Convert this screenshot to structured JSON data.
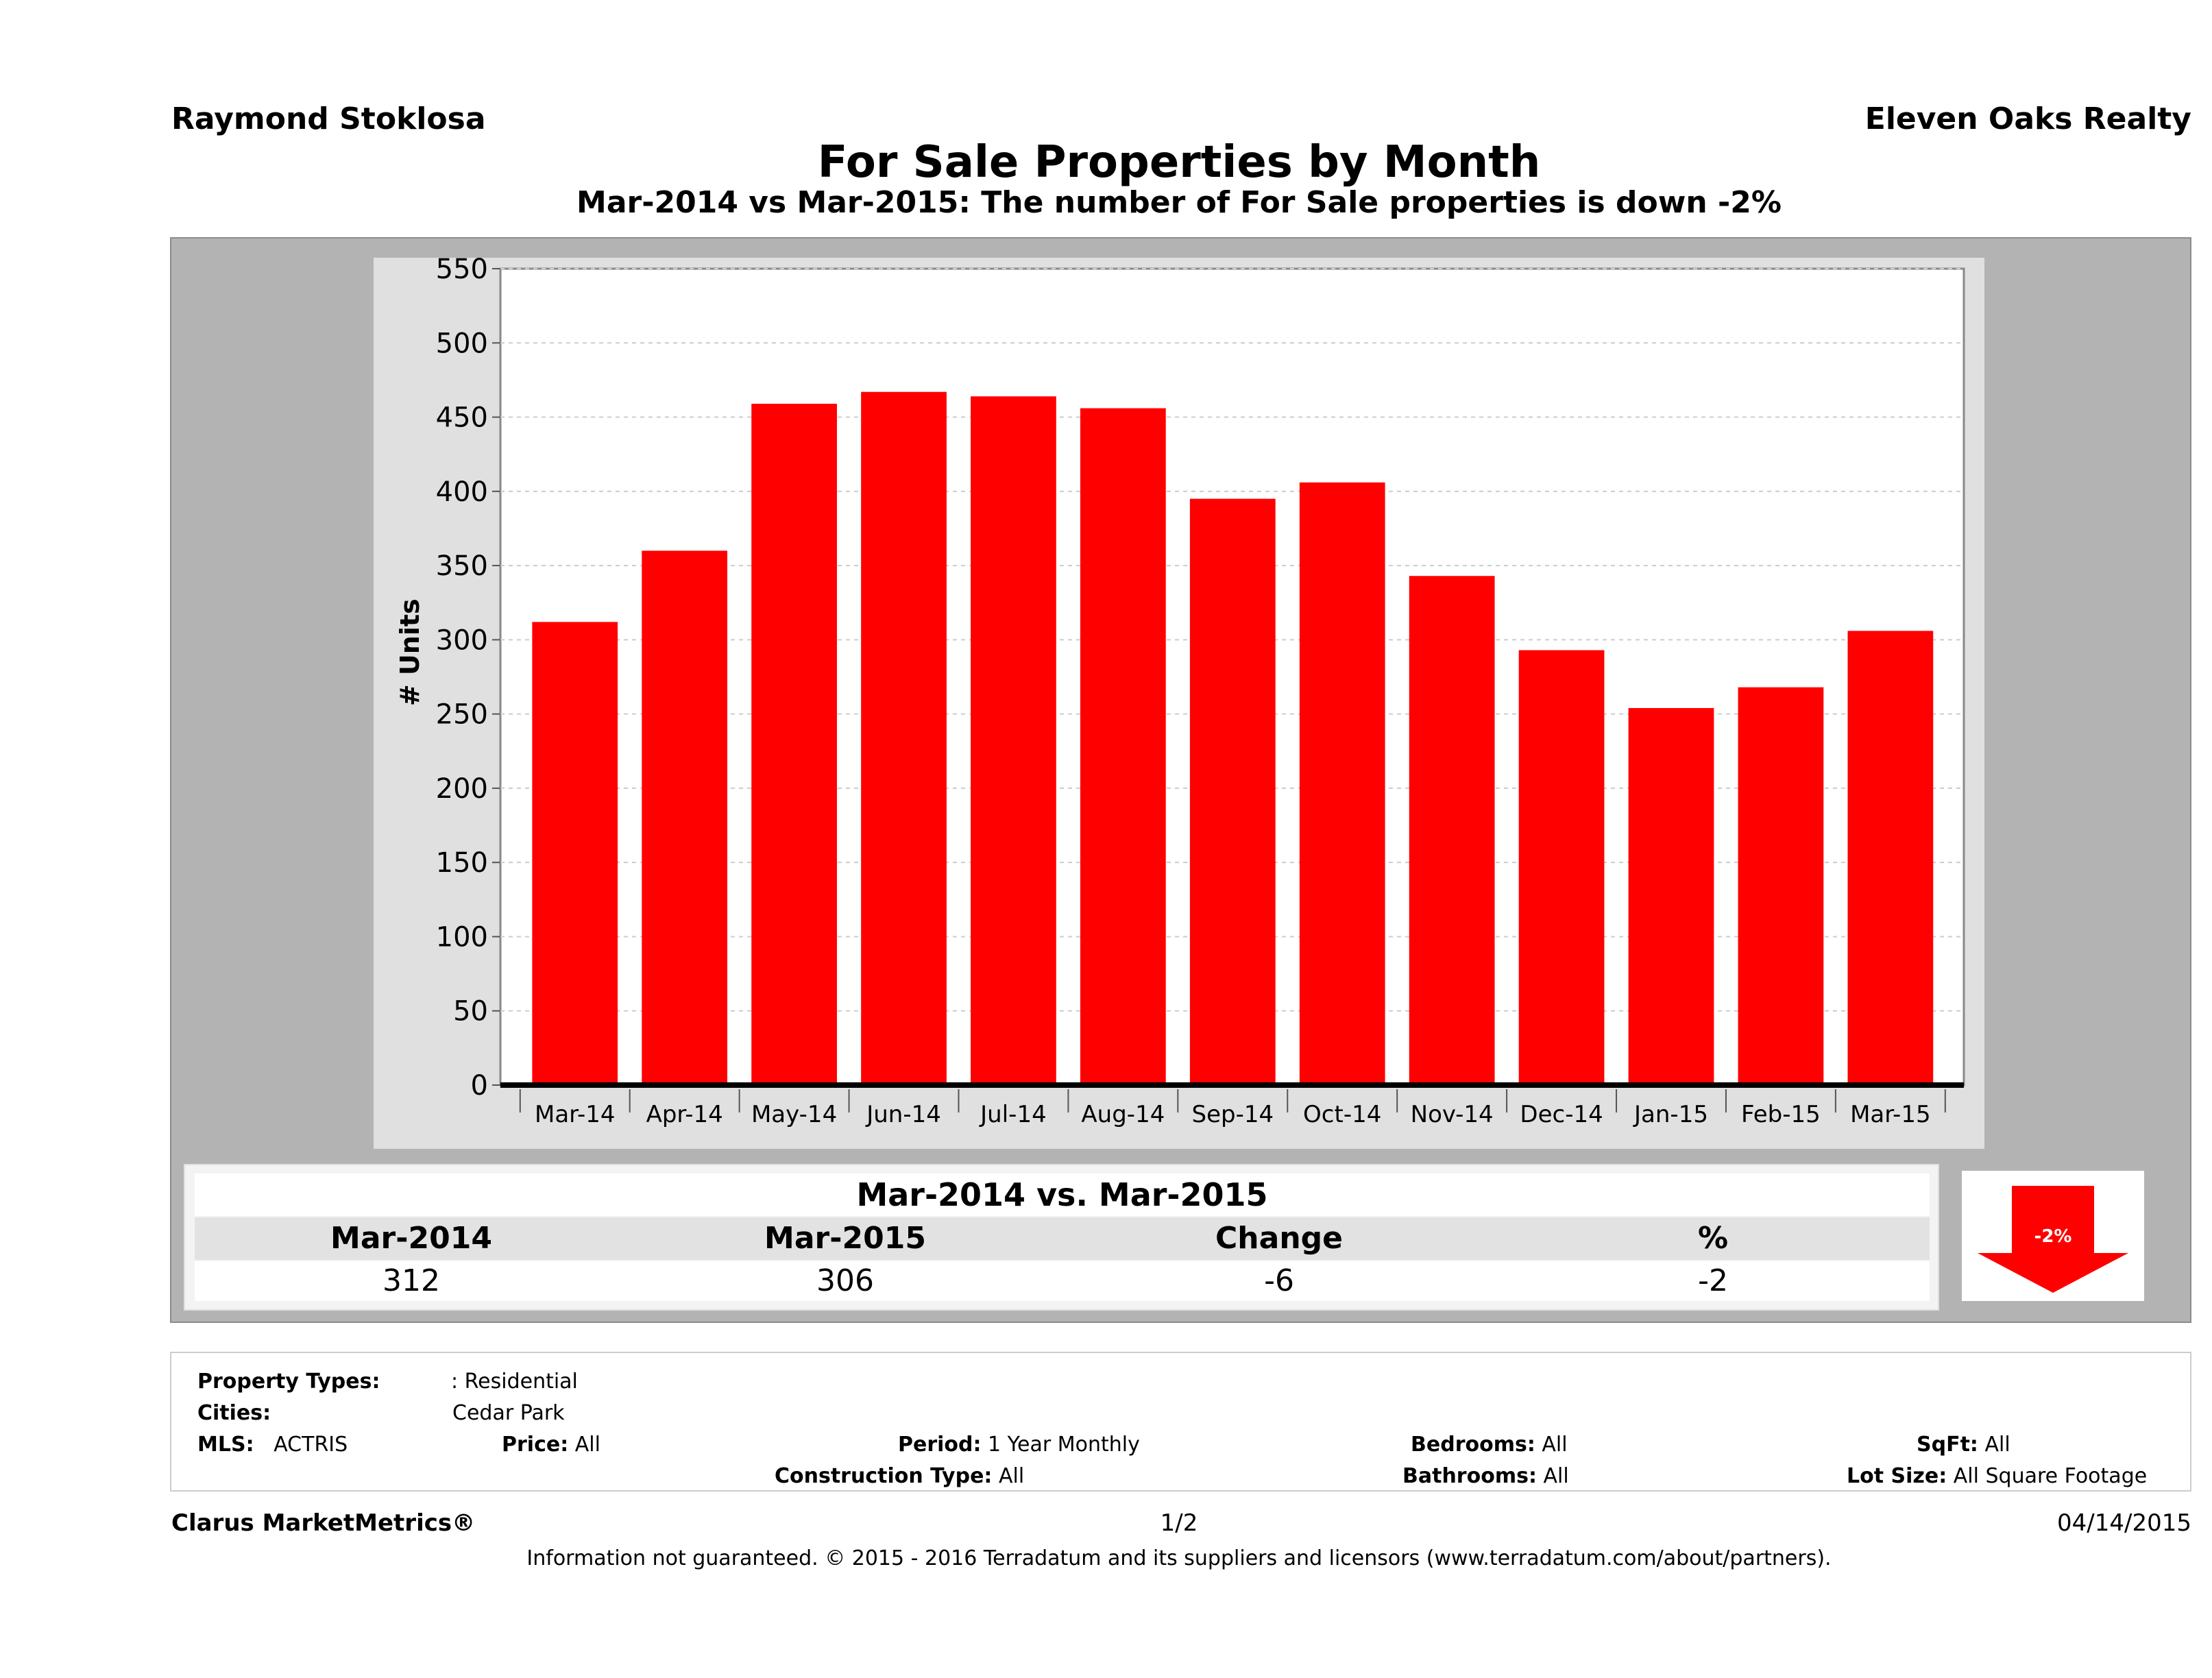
{
  "header": {
    "agent": "Raymond Stoklosa",
    "company": "Eleven Oaks Realty",
    "title": "For Sale Properties by Month",
    "subtitle": "Mar-2014 vs Mar-2015: The number of For Sale  properties is down -2%"
  },
  "chart_data": {
    "type": "bar",
    "categories": [
      "Mar-14",
      "Apr-14",
      "May-14",
      "Jun-14",
      "Jul-14",
      "Aug-14",
      "Sep-14",
      "Oct-14",
      "Nov-14",
      "Dec-14",
      "Jan-15",
      "Feb-15",
      "Mar-15"
    ],
    "values": [
      312,
      360,
      459,
      467,
      464,
      456,
      395,
      406,
      343,
      293,
      254,
      268,
      306
    ],
    "ylabel": "# Units",
    "xlabel": "",
    "ylim": [
      0,
      550
    ],
    "yticks": [
      0,
      50,
      100,
      150,
      200,
      250,
      300,
      350,
      400,
      450,
      500,
      550
    ],
    "bar_color": "#ff0000",
    "grid": true
  },
  "summary": {
    "title": "Mar-2014 vs. Mar-2015",
    "headers": [
      "Mar-2014",
      "Mar-2015",
      "Change",
      "%"
    ],
    "values": [
      "312",
      "306",
      "-6",
      "-2"
    ],
    "badge": "-2%",
    "badge_direction": "down",
    "badge_color": "#ff0000"
  },
  "criteria": {
    "property_types_label": "Property Types:",
    "property_types_value": ": Residential",
    "cities_label": "Cities:",
    "cities_value": "Cedar Park",
    "mls_label": "MLS:",
    "mls_value": "ACTRIS",
    "price_label": "Price:",
    "price_value": "All",
    "period_label": "Period:",
    "period_value": "1 Year Monthly",
    "construction_label": "Construction Type:",
    "construction_value": "All",
    "bedrooms_label": "Bedrooms:",
    "bedrooms_value": "All",
    "bathrooms_label": "Bathrooms:",
    "bathrooms_value": "All",
    "sqft_label": "SqFt:",
    "sqft_value": "All",
    "lotsize_label": "Lot Size:",
    "lotsize_value": "All Square Footage"
  },
  "footer": {
    "brand": "Clarus MarketMetrics®",
    "page": "1/2",
    "date": "04/14/2015",
    "disclaimer": "Information not guaranteed. © 2015 - 2016 Terradatum and its suppliers and licensors (www.terradatum.com/about/partners)."
  }
}
